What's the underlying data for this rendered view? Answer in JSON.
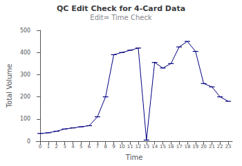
{
  "chart_data": {
    "type": "line",
    "title": "QC Edit Check for 4-Card Data",
    "subtitle": "Edit= Time Check",
    "xlabel": "Time",
    "ylabel": "Total Volume",
    "x": [
      0,
      1,
      2,
      3,
      4,
      5,
      6,
      7,
      8,
      9,
      10,
      11,
      12,
      13,
      14,
      15,
      16,
      17,
      18,
      19,
      20,
      21,
      22,
      23
    ],
    "values": [
      35,
      38,
      45,
      55,
      60,
      65,
      70,
      110,
      200,
      390,
      400,
      410,
      420,
      5,
      355,
      330,
      350,
      425,
      450,
      405,
      260,
      245,
      200,
      180
    ],
    "color": "#000080",
    "marker": "dash",
    "xlim": [
      -0.5,
      23.5
    ],
    "ylim": [
      0,
      500
    ],
    "xticks": [
      0,
      1,
      2,
      3,
      4,
      5,
      6,
      7,
      8,
      9,
      10,
      11,
      12,
      13,
      14,
      15,
      16,
      17,
      18,
      19,
      20,
      21,
      22,
      23
    ],
    "yticks": [
      0,
      100,
      200,
      300,
      400,
      500
    ],
    "grid": false
  }
}
